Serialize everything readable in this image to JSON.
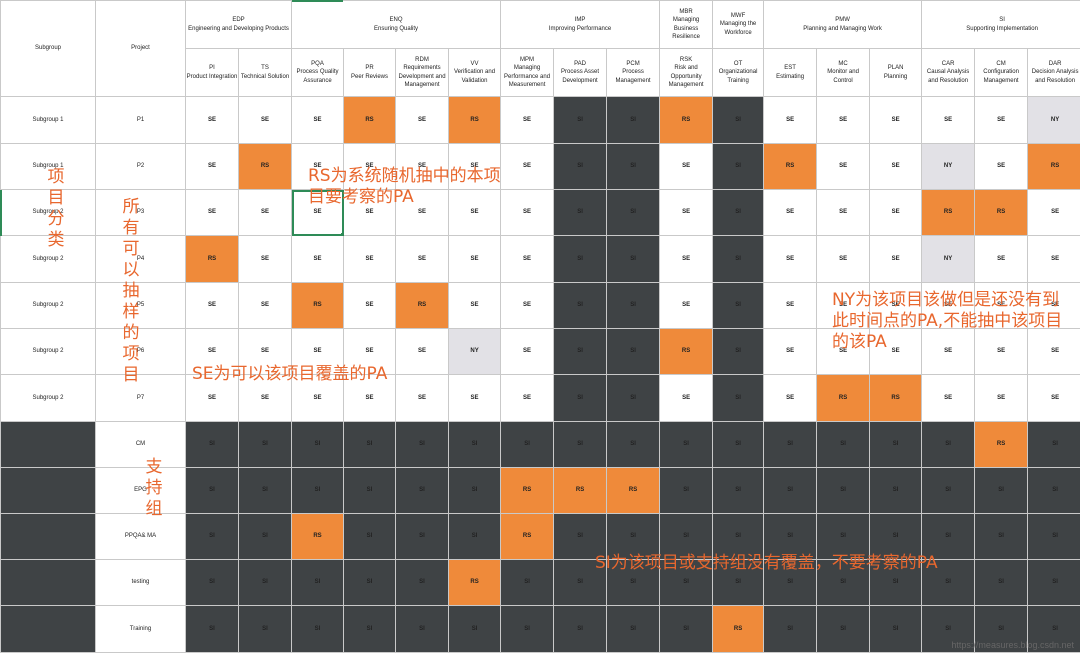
{
  "header": {
    "subgroup": "Subgroup",
    "project": "Project",
    "groups": [
      {
        "code": "EDP",
        "name": "Engineering and Developing Products"
      },
      {
        "code": "ENQ",
        "name": "Ensuring Quality"
      },
      {
        "code": "IMP",
        "name": "Improving Performance"
      },
      {
        "code": "MBR",
        "name": "Managing Business Resilience"
      },
      {
        "code": "MWF",
        "name": "Managing the Workforce"
      },
      {
        "code": "PMW",
        "name": "Planning and Managing Work"
      },
      {
        "code": "SI",
        "name": "Supporting Implementation"
      }
    ],
    "pas": [
      {
        "code": "PI",
        "name": "Product Integration"
      },
      {
        "code": "TS",
        "name": "Technical Solution"
      },
      {
        "code": "PQA",
        "name": "Process Quality Assurance"
      },
      {
        "code": "PR",
        "name": "Peer Reviews"
      },
      {
        "code": "RDM",
        "name": "Requirements Development and Management"
      },
      {
        "code": "VV",
        "name": "Verification and Validation"
      },
      {
        "code": "MPM",
        "name": "Managing Performance and Measurement"
      },
      {
        "code": "PAD",
        "name": "Process Asset Development"
      },
      {
        "code": "PCM",
        "name": "Process Management"
      },
      {
        "code": "RSK",
        "name": "Risk and Opportunity Management"
      },
      {
        "code": "OT",
        "name": "Organizational Training"
      },
      {
        "code": "EST",
        "name": "Estimating"
      },
      {
        "code": "MC",
        "name": "Monitor and Control"
      },
      {
        "code": "PLAN",
        "name": "Planning"
      },
      {
        "code": "CAR",
        "name": "Causal Analysis and Resolution"
      },
      {
        "code": "CM",
        "name": "Configuration Management"
      },
      {
        "code": "DAR",
        "name": "Decision Analysis and Resolution"
      }
    ]
  },
  "rows": [
    {
      "subgroup": "Subgroup 1",
      "project": "P1",
      "cells": [
        "SE",
        "SE",
        "SE",
        "RS",
        "SE",
        "RS",
        "SE",
        "SI",
        "SI",
        "RS",
        "SI",
        "SE",
        "SE",
        "SE",
        "SE",
        "SE",
        "NY"
      ]
    },
    {
      "subgroup": "Subgroup 1",
      "project": "P2",
      "cells": [
        "SE",
        "RS",
        "SE",
        "SE",
        "SE",
        "SE",
        "SE",
        "SI",
        "SI",
        "SE",
        "SI",
        "RS",
        "SE",
        "SE",
        "NY",
        "SE",
        "RS"
      ]
    },
    {
      "subgroup": "Subgroup 2",
      "project": "P3",
      "cells": [
        "SE",
        "SE",
        "SE",
        "SE",
        "SE",
        "SE",
        "SE",
        "SI",
        "SI",
        "SE",
        "SI",
        "SE",
        "SE",
        "SE",
        "RS",
        "RS",
        "SE"
      ]
    },
    {
      "subgroup": "Subgroup 2",
      "project": "P4",
      "cells": [
        "RS",
        "SE",
        "SE",
        "SE",
        "SE",
        "SE",
        "SE",
        "SI",
        "SI",
        "SE",
        "SI",
        "SE",
        "SE",
        "SE",
        "NY",
        "SE",
        "SE"
      ]
    },
    {
      "subgroup": "Subgroup 2",
      "project": "P5",
      "cells": [
        "SE",
        "SE",
        "RS",
        "SE",
        "RS",
        "SE",
        "SE",
        "SI",
        "SI",
        "SE",
        "SI",
        "SE",
        "SE",
        "SE",
        "SE",
        "SE",
        "SE"
      ]
    },
    {
      "subgroup": "Subgroup 2",
      "project": "P6",
      "cells": [
        "SE",
        "SE",
        "SE",
        "SE",
        "SE",
        "NY",
        "SE",
        "SI",
        "SI",
        "RS",
        "SI",
        "SE",
        "SE",
        "SE",
        "SE",
        "SE",
        "SE"
      ]
    },
    {
      "subgroup": "Subgroup 2",
      "project": "P7",
      "cells": [
        "SE",
        "SE",
        "SE",
        "SE",
        "SE",
        "SE",
        "SE",
        "SI",
        "SI",
        "SE",
        "SI",
        "SE",
        "RS",
        "RS",
        "SE",
        "SE",
        "SE"
      ]
    },
    {
      "subgroup": "",
      "project": "CM",
      "cells": [
        "SI",
        "SI",
        "SI",
        "SI",
        "SI",
        "SI",
        "SI",
        "SI",
        "SI",
        "SI",
        "SI",
        "SI",
        "SI",
        "SI",
        "SI",
        "RS",
        "SI"
      ]
    },
    {
      "subgroup": "",
      "project": "EPG",
      "cells": [
        "SI",
        "SI",
        "SI",
        "SI",
        "SI",
        "SI",
        "RS",
        "RS",
        "RS",
        "SI",
        "SI",
        "SI",
        "SI",
        "SI",
        "SI",
        "SI",
        "SI"
      ]
    },
    {
      "subgroup": "",
      "project": "PPQA& MA",
      "cells": [
        "SI",
        "SI",
        "RS",
        "SI",
        "SI",
        "SI",
        "RS",
        "SI",
        "SI",
        "SI",
        "SI",
        "SI",
        "SI",
        "SI",
        "SI",
        "SI",
        "SI"
      ]
    },
    {
      "subgroup": "",
      "project": "testing",
      "cells": [
        "SI",
        "SI",
        "SI",
        "SI",
        "SI",
        "RS",
        "SI",
        "SI",
        "SI",
        "SI",
        "SI",
        "SI",
        "SI",
        "SI",
        "SI",
        "SI",
        "SI"
      ]
    },
    {
      "subgroup": "",
      "project": "Training",
      "cells": [
        "SI",
        "SI",
        "SI",
        "SI",
        "SI",
        "SI",
        "SI",
        "SI",
        "SI",
        "SI",
        "RS",
        "SI",
        "SI",
        "SI",
        "SI",
        "SI",
        "SI"
      ]
    }
  ],
  "annotations": {
    "project_class": "项目分类",
    "all_projects": "所有可以抽样的项目",
    "rs_note": "RS为系统随机抽中的本项目要考察的PA",
    "ny_note": "NY为该项目该做但是还没有到此时间点的PA,不能抽中该项目的该PA",
    "se_note": "SE为可以该项目覆盖的PA",
    "support_group": "支持组",
    "si_note": "SI为该项目或支持组没有覆盖，不要考察的PA"
  },
  "watermark": "https://measures.blog.csdn.net",
  "colors": {
    "RS": "#ef8a3a",
    "NY": "#e2e1e6",
    "SI": "#3f4345",
    "SE": "#ffffff",
    "annotation": "#e8672e"
  }
}
